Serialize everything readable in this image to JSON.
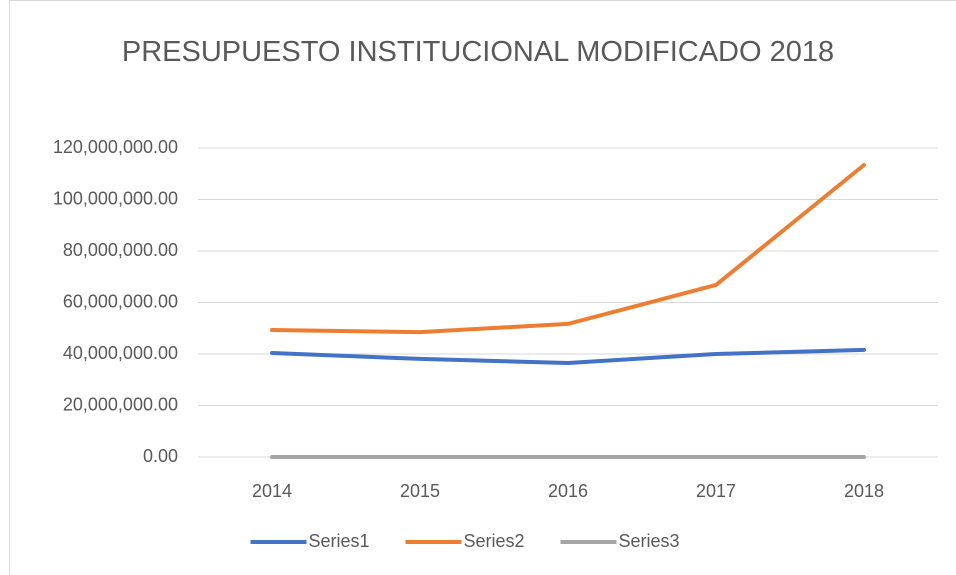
{
  "chart_data": {
    "type": "line",
    "title": "PRESUPUESTO INSTITUCIONAL MODIFICADO 2018",
    "categories": [
      "2014",
      "2015",
      "2016",
      "2017",
      "2018"
    ],
    "series": [
      {
        "name": "Series1",
        "color": "#4472c4",
        "values": [
          40400000,
          38100000,
          36500000,
          40000000,
          41600000
        ]
      },
      {
        "name": "Series2",
        "color": "#ed7d31",
        "values": [
          49300000,
          48500000,
          51700000,
          66800000,
          113400000
        ]
      },
      {
        "name": "Series3",
        "color": "#a5a5a5",
        "values": [
          0,
          0,
          0,
          0,
          0
        ]
      }
    ],
    "ylim": [
      0,
      120000000
    ],
    "yticks": [
      {
        "value": 0,
        "label": "0.00"
      },
      {
        "value": 20000000,
        "label": "20,000,000.00"
      },
      {
        "value": 40000000,
        "label": "40,000,000.00"
      },
      {
        "value": 60000000,
        "label": "60,000,000.00"
      },
      {
        "value": 80000000,
        "label": "80,000,000.00"
      },
      {
        "value": 100000000,
        "label": "100,000,000.00"
      },
      {
        "value": 120000000,
        "label": "120,000,000.00"
      }
    ],
    "grid": true,
    "legend": "bottom"
  }
}
